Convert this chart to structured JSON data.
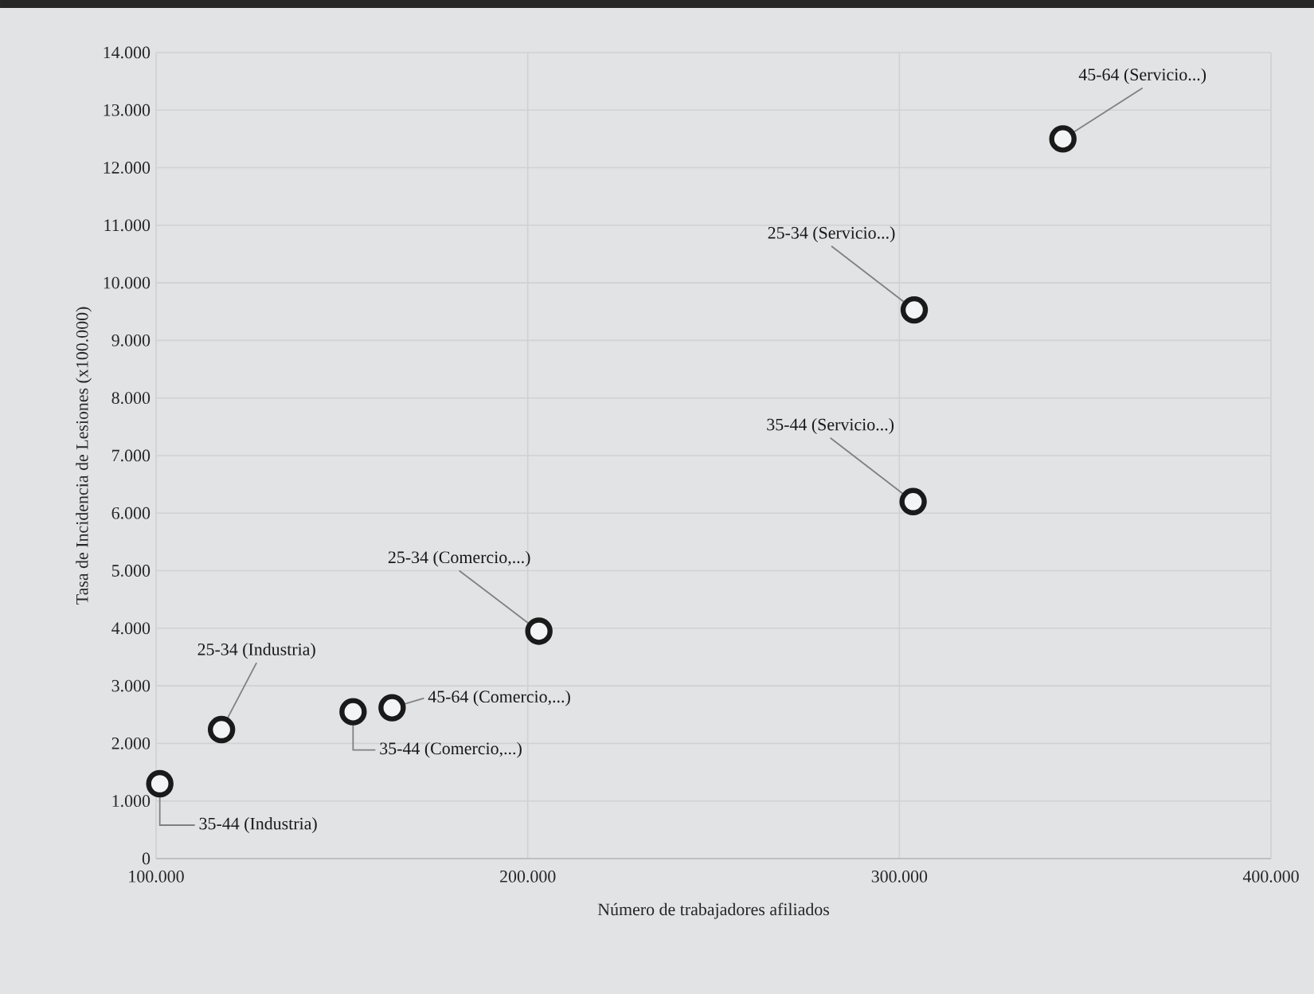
{
  "chart_data": {
    "type": "scatter",
    "xlabel": "Número de trabajadores afiliados",
    "ylabel": "Tasa de Incidencia de Lesiones (x100.000)",
    "x": [
      101000,
      117600,
      153000,
      163500,
      203000,
      303700,
      304000,
      344000
    ],
    "values": [
      1300,
      2240,
      2550,
      2620,
      3950,
      6200,
      9530,
      12500
    ],
    "color": "#1a1a1a",
    "marker": "circle",
    "grid": true,
    "xlim": [
      100000,
      400000
    ],
    "ylim": [
      0,
      14000
    ],
    "xticks": [
      {
        "value": 100000,
        "label": "100.000"
      },
      {
        "value": 200000,
        "label": "200.000"
      },
      {
        "value": 300000,
        "label": "300.000"
      },
      {
        "value": 400000,
        "label": "400.000"
      }
    ],
    "yticks": [
      0,
      {
        "value": 1000,
        "label": "1.000"
      },
      {
        "value": 2000,
        "label": "2.000"
      },
      {
        "value": 3000,
        "label": "3.000"
      },
      {
        "value": 4000,
        "label": "4.000"
      },
      {
        "value": 5000,
        "label": "5.000"
      },
      {
        "value": 6000,
        "label": "6.000"
      },
      {
        "value": 7000,
        "label": "7.000"
      },
      {
        "value": 8000,
        "label": "8.000"
      },
      {
        "value": 9000,
        "label": "9.000"
      },
      {
        "value": 10000,
        "label": "10.000"
      },
      {
        "value": 11000,
        "label": "11.000"
      },
      {
        "value": 12000,
        "label": "12.000"
      },
      {
        "value": 13000,
        "label": "13.000"
      },
      {
        "value": 14000,
        "label": "14.000"
      }
    ],
    "annotations": [
      {
        "text": "35-44 (Industria)",
        "x": 101000,
        "y": 1300
      },
      {
        "text": "25-34 (Industria)",
        "x": 117600,
        "y": 2240
      },
      {
        "text": "35-44 (Comercio,...)",
        "x": 153000,
        "y": 2550
      },
      {
        "text": "45-64 (Comercio,...)",
        "x": 163500,
        "y": 2620
      },
      {
        "text": "25-34 (Comercio,...)",
        "x": 203000,
        "y": 3950
      },
      {
        "text": "35-44 (Servicio...)",
        "x": 303700,
        "y": 6200
      },
      {
        "text": "25-34 (Servicio...)",
        "x": 304000,
        "y": 9530
      },
      {
        "text": "45-64 (Servicio...)",
        "x": 344000,
        "y": 12500
      }
    ]
  }
}
